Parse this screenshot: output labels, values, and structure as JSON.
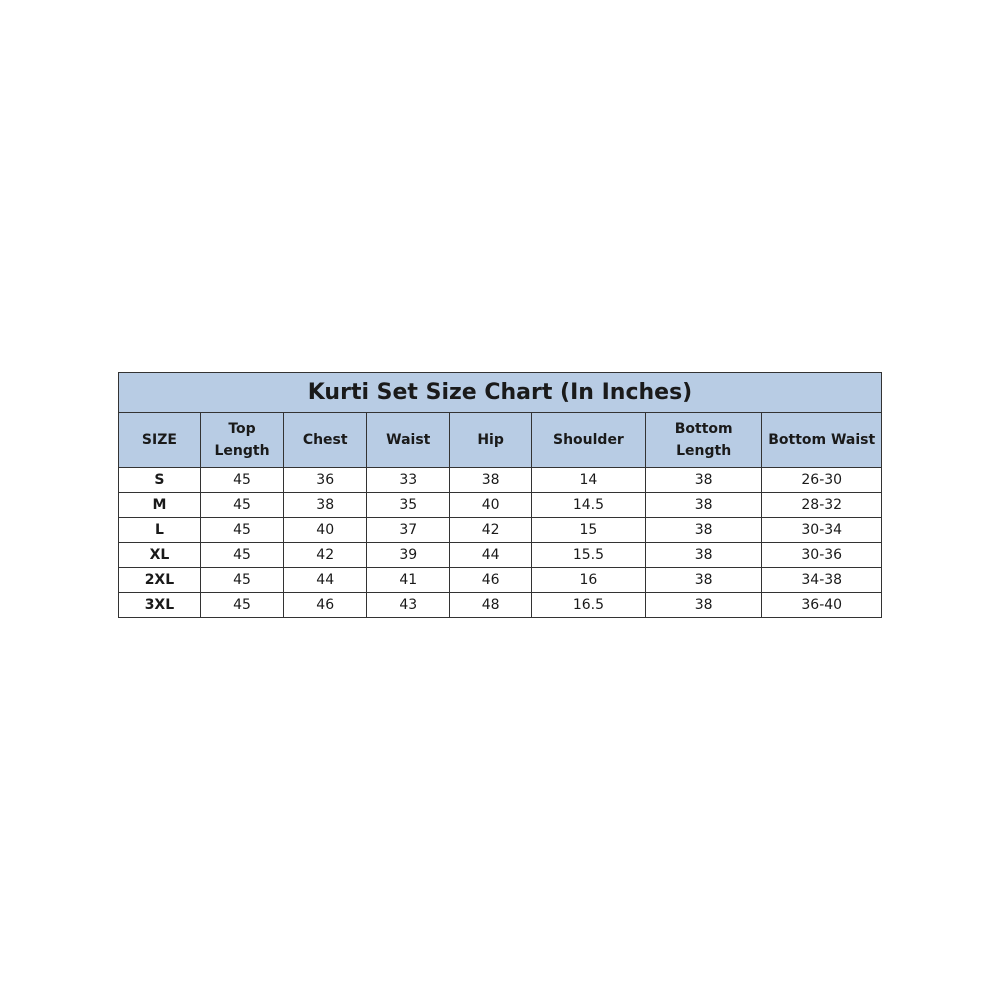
{
  "title": "Kurti Set Size Chart (In Inches)",
  "colors": {
    "header_fill": "#b8cce4",
    "border": "#333333"
  },
  "columns": [
    "SIZE",
    "Top Length",
    "Chest",
    "Waist",
    "Hip",
    "Shoulder",
    "Bottom Length",
    "Bottom Waist"
  ],
  "rows": [
    [
      "S",
      "45",
      "36",
      "33",
      "38",
      "14",
      "38",
      "26-30"
    ],
    [
      "M",
      "45",
      "38",
      "35",
      "40",
      "14.5",
      "38",
      "28-32"
    ],
    [
      "L",
      "45",
      "40",
      "37",
      "42",
      "15",
      "38",
      "30-34"
    ],
    [
      "XL",
      "45",
      "42",
      "39",
      "44",
      "15.5",
      "38",
      "30-36"
    ],
    [
      "2XL",
      "45",
      "44",
      "41",
      "46",
      "16",
      "38",
      "34-38"
    ],
    [
      "3XL",
      "45",
      "46",
      "43",
      "48",
      "16.5",
      "38",
      "36-40"
    ]
  ]
}
